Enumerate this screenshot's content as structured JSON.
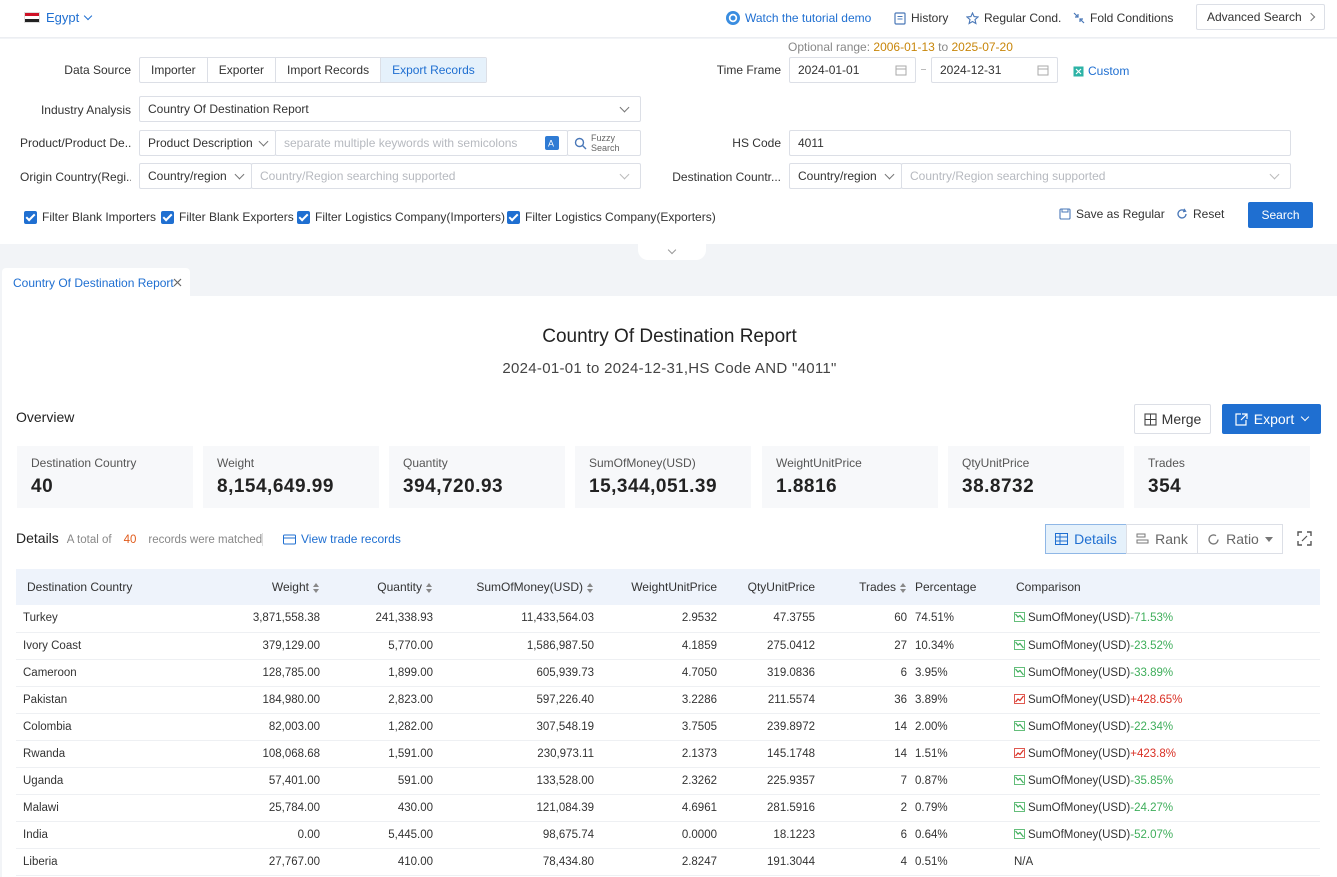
{
  "topbar": {
    "country": "Egypt",
    "tutorial": "Watch the tutorial demo",
    "history": "History",
    "regular": "Regular Cond.",
    "fold": "Fold Conditions",
    "advanced": "Advanced Search"
  },
  "filters": {
    "optional_range_label": "Optional range",
    "range_start": "2006-01-13",
    "range_to": "to",
    "range_end": "2025-07-20",
    "data_source_label": "Data Source",
    "data_sources": [
      "Importer",
      "Exporter",
      "Import Records",
      "Export Records"
    ],
    "timeframe_label": "Time Frame",
    "date_from": "2024-01-01",
    "date_to": "2024-12-31",
    "custom": "Custom",
    "industry_label": "Industry Analysis",
    "industry_value": "Country Of Destination Report",
    "product_label": "Product/Product De...",
    "product_type": "Product Description",
    "product_placeholder": "separate multiple keywords with semicolons",
    "fuzzy1": "Fuzzy",
    "fuzzy2": "Search",
    "hs_label": "HS Code",
    "hs_value": "4011",
    "origin_label": "Origin Country(Regi...",
    "origin_type": "Country/region",
    "origin_placeholder": "Country/Region searching supported",
    "dest_label": "Destination Countr...",
    "dest_type": "Country/region",
    "dest_placeholder": "Country/Region searching supported",
    "checks": [
      "Filter Blank Importers",
      "Filter Blank Exporters",
      "Filter Logistics Company(Importers)",
      "Filter Logistics Company(Exporters)"
    ],
    "save_regular": "Save as Regular",
    "reset": "Reset",
    "search": "Search"
  },
  "tab": {
    "label": "Country Of Destination Report"
  },
  "report": {
    "title": "Country Of Destination Report",
    "subtitle": "2024-01-01 to 2024-12-31,HS Code AND \"4011\"",
    "overview_label": "Overview",
    "merge": "Merge",
    "export": "Export"
  },
  "overview": [
    {
      "label": "Destination Country",
      "value": "40"
    },
    {
      "label": "Weight",
      "value": "8,154,649.99"
    },
    {
      "label": "Quantity",
      "value": "394,720.93"
    },
    {
      "label": "SumOfMoney(USD)",
      "value": "15,344,051.39"
    },
    {
      "label": "WeightUnitPrice",
      "value": "1.8816"
    },
    {
      "label": "QtyUnitPrice",
      "value": "38.8732"
    },
    {
      "label": "Trades",
      "value": "354"
    }
  ],
  "details": {
    "title": "Details",
    "total_prefix": "A total of",
    "total_count": "40",
    "total_suffix": "records were matched",
    "view_records": "View trade records",
    "view_details": "Details",
    "view_rank": "Rank",
    "view_ratio": "Ratio"
  },
  "table": {
    "headers": [
      "Destination Country",
      "Weight",
      "Quantity",
      "SumOfMoney(USD)",
      "WeightUnitPrice",
      "QtyUnitPrice",
      "Trades",
      "Percentage",
      "Comparison"
    ],
    "rows": [
      {
        "country": "Turkey",
        "weight": "3,871,558.38",
        "quantity": "241,338.93",
        "money": "11,433,564.03",
        "wup": "2.9532",
        "qup": "47.3755",
        "trades": "60",
        "pct": "74.51%",
        "cmp_label": "SumOfMoney(USD)",
        "cmp_val": "-71.53%",
        "trend": "down"
      },
      {
        "country": "Ivory Coast",
        "weight": "379,129.00",
        "quantity": "5,770.00",
        "money": "1,586,987.50",
        "wup": "4.1859",
        "qup": "275.0412",
        "trades": "27",
        "pct": "10.34%",
        "cmp_label": "SumOfMoney(USD)",
        "cmp_val": "-23.52%",
        "trend": "down"
      },
      {
        "country": "Cameroon",
        "weight": "128,785.00",
        "quantity": "1,899.00",
        "money": "605,939.73",
        "wup": "4.7050",
        "qup": "319.0836",
        "trades": "6",
        "pct": "3.95%",
        "cmp_label": "SumOfMoney(USD)",
        "cmp_val": "-33.89%",
        "trend": "down"
      },
      {
        "country": "Pakistan",
        "weight": "184,980.00",
        "quantity": "2,823.00",
        "money": "597,226.40",
        "wup": "3.2286",
        "qup": "211.5574",
        "trades": "36",
        "pct": "3.89%",
        "cmp_label": "SumOfMoney(USD)",
        "cmp_val": "+428.65%",
        "trend": "up"
      },
      {
        "country": "Colombia",
        "weight": "82,003.00",
        "quantity": "1,282.00",
        "money": "307,548.19",
        "wup": "3.7505",
        "qup": "239.8972",
        "trades": "14",
        "pct": "2.00%",
        "cmp_label": "SumOfMoney(USD)",
        "cmp_val": "-22.34%",
        "trend": "down"
      },
      {
        "country": "Rwanda",
        "weight": "108,068.68",
        "quantity": "1,591.00",
        "money": "230,973.11",
        "wup": "2.1373",
        "qup": "145.1748",
        "trades": "14",
        "pct": "1.51%",
        "cmp_label": "SumOfMoney(USD)",
        "cmp_val": "+423.8%",
        "trend": "up"
      },
      {
        "country": "Uganda",
        "weight": "57,401.00",
        "quantity": "591.00",
        "money": "133,528.00",
        "wup": "2.3262",
        "qup": "225.9357",
        "trades": "7",
        "pct": "0.87%",
        "cmp_label": "SumOfMoney(USD)",
        "cmp_val": "-35.85%",
        "trend": "down"
      },
      {
        "country": "Malawi",
        "weight": "25,784.00",
        "quantity": "430.00",
        "money": "121,084.39",
        "wup": "4.6961",
        "qup": "281.5916",
        "trades": "2",
        "pct": "0.79%",
        "cmp_label": "SumOfMoney(USD)",
        "cmp_val": "-24.27%",
        "trend": "down"
      },
      {
        "country": "India",
        "weight": "0.00",
        "quantity": "5,445.00",
        "money": "98,675.74",
        "wup": "0.0000",
        "qup": "18.1223",
        "trades": "6",
        "pct": "0.64%",
        "cmp_label": "SumOfMoney(USD)",
        "cmp_val": "-52.07%",
        "trend": "down"
      },
      {
        "country": "Liberia",
        "weight": "27,767.00",
        "quantity": "410.00",
        "money": "78,434.80",
        "wup": "2.8247",
        "qup": "191.3044",
        "trades": "4",
        "pct": "0.51%",
        "cmp_label": "N/A",
        "cmp_val": "",
        "trend": "none"
      }
    ]
  },
  "colors": {
    "accent": "#1f6fd1",
    "negative": "#3fae5b",
    "positive": "#d93025",
    "highlight": "#e05a1a"
  }
}
